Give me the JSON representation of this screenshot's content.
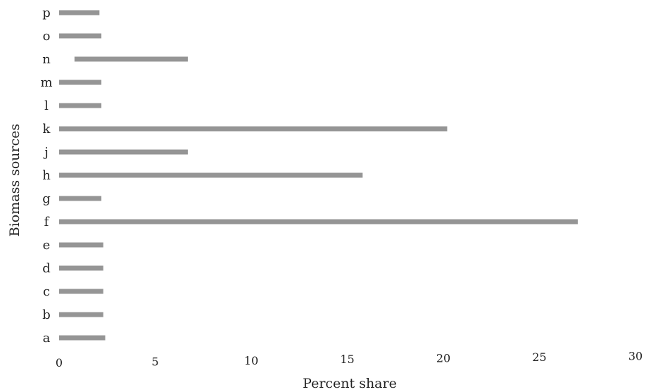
{
  "chart_data": {
    "type": "bar",
    "orientation": "horizontal",
    "categories": [
      "a",
      "b",
      "c",
      "d",
      "e",
      "f",
      "g",
      "h",
      "j",
      "k",
      "l",
      "m",
      "n",
      "o",
      "p"
    ],
    "bars": [
      {
        "start": 0.0,
        "end": 2.4
      },
      {
        "start": 0.0,
        "end": 2.3
      },
      {
        "start": 0.0,
        "end": 2.3
      },
      {
        "start": 0.0,
        "end": 2.3
      },
      {
        "start": 0.0,
        "end": 2.3
      },
      {
        "start": 0.0,
        "end": 27.0
      },
      {
        "start": 0.0,
        "end": 2.2
      },
      {
        "start": 0.0,
        "end": 15.8
      },
      {
        "start": 0.0,
        "end": 6.7
      },
      {
        "start": 0.0,
        "end": 20.2
      },
      {
        "start": 0.0,
        "end": 2.2
      },
      {
        "start": 0.0,
        "end": 2.2
      },
      {
        "start": 0.8,
        "end": 6.7
      },
      {
        "start": 0.0,
        "end": 2.2
      },
      {
        "start": 0.0,
        "end": 2.1
      }
    ],
    "xlabel": "Percent share",
    "ylabel": "Biomass sources",
    "xlim": [
      0,
      30
    ],
    "xticks": [
      "0",
      "5",
      "10",
      "15",
      "20",
      "25",
      "30"
    ],
    "grid": false,
    "bar_color": "#8c8c8c"
  }
}
